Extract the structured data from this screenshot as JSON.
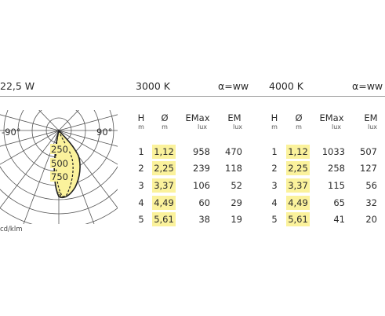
{
  "power": "22,5 W",
  "blocks": [
    {
      "cct": "3000 K",
      "alpha": "α=ww",
      "headers": {
        "h": "H",
        "d": "Ø",
        "emax": "EMax",
        "em": "EM"
      },
      "units": {
        "h": "m",
        "d": "m",
        "emax": "lux",
        "em": "lux"
      },
      "rows": [
        {
          "h": "1",
          "d": "1,12",
          "emax": "958",
          "em": "470"
        },
        {
          "h": "2",
          "d": "2,25",
          "emax": "239",
          "em": "118"
        },
        {
          "h": "3",
          "d": "3,37",
          "emax": "106",
          "em": "52"
        },
        {
          "h": "4",
          "d": "4,49",
          "emax": "60",
          "em": "29"
        },
        {
          "h": "5",
          "d": "5,61",
          "emax": "38",
          "em": "19"
        }
      ]
    },
    {
      "cct": "4000 K",
      "alpha": "α=ww",
      "headers": {
        "h": "H",
        "d": "Ø",
        "emax": "EMax",
        "em": "EM"
      },
      "units": {
        "h": "m",
        "d": "m",
        "emax": "lux",
        "em": "lux"
      },
      "rows": [
        {
          "h": "1",
          "d": "1,12",
          "emax": "1033",
          "em": "507"
        },
        {
          "h": "2",
          "d": "2,25",
          "emax": "258",
          "em": "127"
        },
        {
          "h": "3",
          "d": "3,37",
          "emax": "115",
          "em": "56"
        },
        {
          "h": "4",
          "d": "4,49",
          "emax": "65",
          "em": "32"
        },
        {
          "h": "5",
          "d": "5,61",
          "emax": "41",
          "em": "20"
        }
      ]
    }
  ],
  "polar": {
    "angle_left": "-90°",
    "angle_right": "90°",
    "rings": [
      "250",
      "500",
      "750"
    ],
    "unit": "cd/klm",
    "fill_color": "#fbf29c"
  }
}
